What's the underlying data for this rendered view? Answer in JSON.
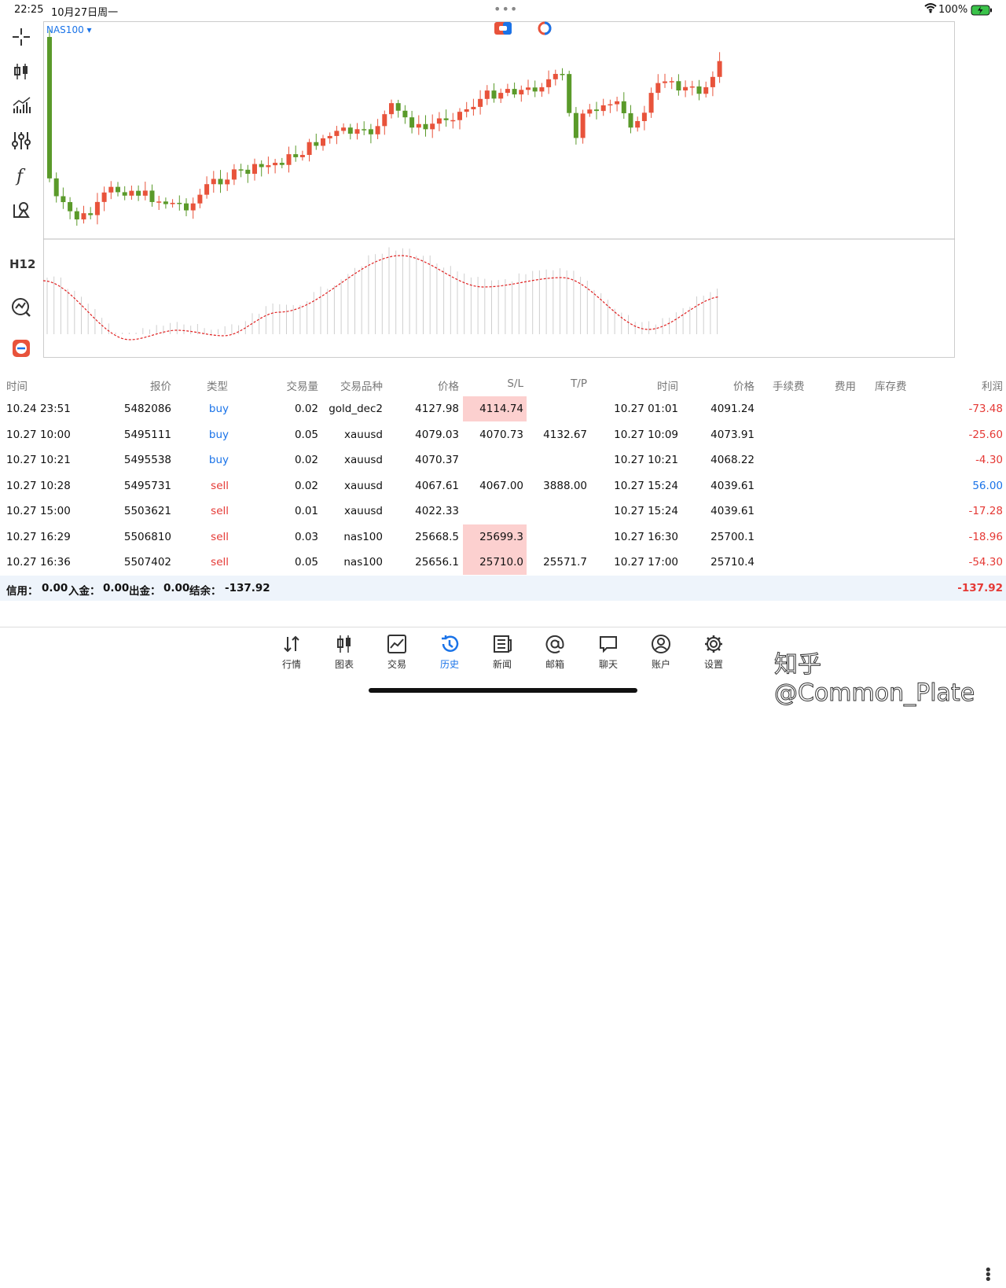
{
  "status_bar": {
    "time": "22:25",
    "date": "10月27日周一",
    "dots": "•••",
    "battery": "100%"
  },
  "chart": {
    "symbol": "NAS100 ▾",
    "period": "H12"
  },
  "table": {
    "headers": [
      "时间",
      "报价",
      "类型",
      "交易量",
      "交易品种",
      "价格",
      "S/L",
      "T/P",
      "时间",
      "价格",
      "手续费",
      "费用",
      "库存费",
      "利润"
    ],
    "rows": [
      {
        "time": "10.24 23:51",
        "ticket": "5482086",
        "type": "buy",
        "volume": "0.02",
        "symbol": "gold_dec2",
        "price": "4127.98",
        "sl": "4114.74",
        "tp": "",
        "close_time": "10.27 01:01",
        "close_price": "4091.24",
        "profit": "-73.48",
        "sl_hl": true
      },
      {
        "time": "10.27 10:00",
        "ticket": "5495111",
        "type": "buy",
        "volume": "0.05",
        "symbol": "xauusd",
        "price": "4079.03",
        "sl": "4070.73",
        "tp": "4132.67",
        "close_time": "10.27 10:09",
        "close_price": "4073.91",
        "profit": "-25.60",
        "sl_hl": false
      },
      {
        "time": "10.27 10:21",
        "ticket": "5495538",
        "type": "buy",
        "volume": "0.02",
        "symbol": "xauusd",
        "price": "4070.37",
        "sl": "",
        "tp": "",
        "close_time": "10.27 10:21",
        "close_price": "4068.22",
        "profit": "-4.30",
        "sl_hl": false
      },
      {
        "time": "10.27 10:28",
        "ticket": "5495731",
        "type": "sell",
        "volume": "0.02",
        "symbol": "xauusd",
        "price": "4067.61",
        "sl": "4067.00",
        "tp": "3888.00",
        "close_time": "10.27 15:24",
        "close_price": "4039.61",
        "profit": "56.00",
        "sl_hl": false
      },
      {
        "time": "10.27 15:00",
        "ticket": "5503621",
        "type": "sell",
        "volume": "0.01",
        "symbol": "xauusd",
        "price": "4022.33",
        "sl": "",
        "tp": "",
        "close_time": "10.27 15:24",
        "close_price": "4039.61",
        "profit": "-17.28",
        "sl_hl": false
      },
      {
        "time": "10.27 16:29",
        "ticket": "5506810",
        "type": "sell",
        "volume": "0.03",
        "symbol": "nas100",
        "price": "25668.5",
        "sl": "25699.3",
        "tp": "",
        "close_time": "10.27 16:30",
        "close_price": "25700.1",
        "profit": "-18.96",
        "sl_hl": true
      },
      {
        "time": "10.27 16:36",
        "ticket": "5507402",
        "type": "sell",
        "volume": "0.05",
        "symbol": "nas100",
        "price": "25656.1",
        "sl": "25710.0",
        "tp": "25571.7",
        "close_time": "10.27 17:00",
        "close_price": "25710.4",
        "profit": "-54.30",
        "sl_hl": true
      }
    ]
  },
  "summary": {
    "credit_label": "信用：",
    "credit": "0.00",
    "deposit_label": "入金：",
    "deposit": "0.00",
    "withdraw_label": "出金：",
    "withdraw": "0.00",
    "balance_label": "结余：",
    "balance": "-137.92",
    "total_profit": "-137.92"
  },
  "nav": [
    {
      "label": "行情",
      "icon": "quotes-icon",
      "active": false
    },
    {
      "label": "图表",
      "icon": "chart-icon",
      "active": false
    },
    {
      "label": "交易",
      "icon": "trade-icon",
      "active": false
    },
    {
      "label": "历史",
      "icon": "history-icon",
      "active": true
    },
    {
      "label": "新闻",
      "icon": "news-icon",
      "active": false
    },
    {
      "label": "邮箱",
      "icon": "mail-icon",
      "active": false
    },
    {
      "label": "聊天",
      "icon": "chat-icon",
      "active": false
    },
    {
      "label": "账户",
      "icon": "account-icon",
      "active": false
    },
    {
      "label": "设置",
      "icon": "settings-icon",
      "active": false
    }
  ],
  "watermark": "知乎 @Common_Plate",
  "colors": {
    "up": "#5a9a2a",
    "down": "#e8533b",
    "accent": "#1a73e8",
    "sl_highlight": "#fcd0cf"
  }
}
